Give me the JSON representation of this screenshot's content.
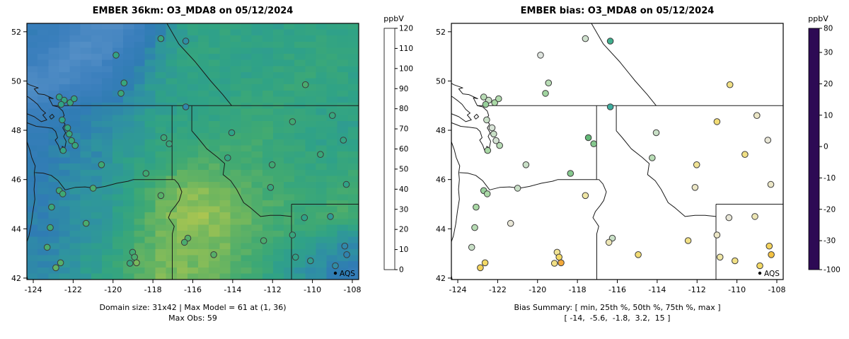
{
  "panels": {
    "model": {
      "title": "EMBER 36km: O3_MDA8 on 05/12/2024",
      "caption1": "Domain size: 31x42 | Max Model = 61 at (1, 36)",
      "caption2": "Max Obs: 59"
    },
    "bias": {
      "title": "EMBER bias: O3_MDA8 on 05/12/2024",
      "caption1": "Bias Summary: [ min, 25th %, 50th %, 75th %, max ]",
      "caption2": "[ -14,  -5.6,  -1.8,  3.2,  15 ]"
    }
  },
  "legend": {
    "aqs": "AQS"
  },
  "chart_data": {
    "type": [
      "heatmap",
      "scatter"
    ],
    "units": "ppbV",
    "lon_range": [
      -124.32,
      -107.68
    ],
    "lat_range": [
      41.94,
      52.34
    ],
    "xticks": [
      -124,
      -122,
      -120,
      -118,
      -116,
      -114,
      -112,
      -110,
      -108
    ],
    "yticks": [
      42,
      44,
      46,
      48,
      50,
      52
    ],
    "domain_size": "31x42",
    "max_model": "61 at (1, 36)",
    "max_obs": 59,
    "bias_summary": {
      "min": -14,
      "p25": -5.6,
      "median": -1.8,
      "p75": 3.2,
      "max": 15
    },
    "model_colorbar": {
      "label": "ppbV",
      "min": 0,
      "max": 120,
      "ticks": [
        0,
        10,
        20,
        30,
        40,
        50,
        60,
        70,
        80,
        90,
        100,
        110,
        120
      ],
      "stops": [
        [
          0,
          "#ffffff"
        ],
        [
          8,
          "#d2d2d2"
        ],
        [
          14,
          "#bcc2c9"
        ],
        [
          18,
          "#a6c3da"
        ],
        [
          24,
          "#7fb0d3"
        ],
        [
          30,
          "#548fc6"
        ],
        [
          36,
          "#3b7fbd"
        ],
        [
          42,
          "#2f7cb3"
        ],
        [
          46,
          "#2f93a0"
        ],
        [
          50,
          "#2fa287"
        ],
        [
          54,
          "#3fa973"
        ],
        [
          58,
          "#6cb55f"
        ],
        [
          62,
          "#a5c452"
        ],
        [
          66,
          "#d0cf46"
        ],
        [
          70,
          "#f2d63c"
        ],
        [
          76,
          "#f2b437"
        ],
        [
          82,
          "#ee9130"
        ],
        [
          90,
          "#e7672a"
        ],
        [
          100,
          "#e03a25"
        ],
        [
          110,
          "#da2430"
        ],
        [
          116,
          "#dd2f5e"
        ],
        [
          120,
          "#e8479b"
        ]
      ]
    },
    "bias_colorbar": {
      "label": "ppbV",
      "anchors": [
        [
          -100,
          0
        ],
        [
          -30,
          0.12
        ],
        [
          -20,
          0.25
        ],
        [
          -10,
          0.38
        ],
        [
          0,
          0.51
        ],
        [
          10,
          0.64
        ],
        [
          20,
          0.77
        ],
        [
          30,
          0.9
        ],
        [
          80,
          1
        ]
      ],
      "stops": [
        [
          -100,
          "#2d0a54"
        ],
        [
          -38,
          "#6a41a8"
        ],
        [
          -28,
          "#4c5fc0"
        ],
        [
          -22,
          "#3f8fc9"
        ],
        [
          -17,
          "#39a8b8"
        ],
        [
          -12,
          "#3fae8d"
        ],
        [
          -8,
          "#62b877"
        ],
        [
          -4,
          "#a9d8a5"
        ],
        [
          0,
          "#e6e6e6"
        ],
        [
          4,
          "#efe6a5"
        ],
        [
          8,
          "#f3d965"
        ],
        [
          12,
          "#f4c243"
        ],
        [
          16,
          "#f2a136"
        ],
        [
          20,
          "#ee7f2e"
        ],
        [
          25,
          "#e25427"
        ],
        [
          30,
          "#cc2d24"
        ],
        [
          45,
          "#a31321"
        ],
        [
          80,
          "#6b0a1c"
        ]
      ]
    },
    "model_grid": {
      "note": "approximate O3_MDA8 field in ppbV, 16 cols x 14 rows, rows north to south",
      "values": [
        [
          39,
          36,
          33,
          31,
          32,
          37,
          44,
          49,
          51,
          51,
          50,
          50,
          50,
          51,
          51,
          51
        ],
        [
          37,
          34,
          31,
          32,
          35,
          41,
          47,
          50,
          51,
          51,
          50,
          50,
          51,
          51,
          52,
          51
        ],
        [
          34,
          31,
          32,
          34,
          38,
          44,
          48,
          50,
          51,
          50,
          50,
          51,
          51,
          52,
          52,
          51
        ],
        [
          32,
          33,
          35,
          38,
          42,
          46,
          49,
          50,
          50,
          50,
          51,
          52,
          52,
          52,
          51,
          50
        ],
        [
          35,
          38,
          40,
          42,
          44,
          47,
          49,
          50,
          50,
          51,
          52,
          52,
          52,
          51,
          50,
          50
        ],
        [
          38,
          41,
          43,
          44,
          46,
          48,
          50,
          51,
          51,
          52,
          53,
          53,
          52,
          51,
          50,
          50
        ],
        [
          40,
          43,
          44,
          45,
          47,
          49,
          51,
          52,
          53,
          53,
          54,
          53,
          52,
          51,
          50,
          51
        ],
        [
          41,
          43,
          44,
          45,
          48,
          50,
          52,
          54,
          55,
          55,
          54,
          53,
          52,
          52,
          51,
          52
        ],
        [
          42,
          44,
          45,
          46,
          48,
          52,
          55,
          57,
          58,
          57,
          56,
          54,
          53,
          52,
          52,
          53
        ],
        [
          42,
          44,
          46,
          47,
          49,
          53,
          57,
          60,
          60,
          59,
          57,
          55,
          54,
          53,
          53,
          54
        ],
        [
          43,
          44,
          46,
          47,
          50,
          54,
          58,
          61,
          61,
          60,
          58,
          56,
          54,
          53,
          54,
          55
        ],
        [
          43,
          44,
          46,
          48,
          51,
          55,
          58,
          60,
          60,
          59,
          57,
          55,
          53,
          52,
          50,
          47
        ],
        [
          43,
          45,
          47,
          49,
          52,
          56,
          58,
          59,
          59,
          58,
          56,
          53,
          51,
          48,
          46,
          44
        ],
        [
          44,
          45,
          47,
          50,
          53,
          57,
          59,
          59,
          58,
          57,
          55,
          52,
          49,
          46,
          44,
          41
        ]
      ]
    },
    "stations": {
      "fields": [
        "lon",
        "lat",
        "obs_ppbv",
        "bias_ppbv"
      ],
      "rows": [
        [
          -117.6,
          51.72,
          52,
          -1.5
        ],
        [
          -116.35,
          51.62,
          45,
          -12
        ],
        [
          -119.85,
          51.05,
          51,
          -0.5
        ],
        [
          -119.45,
          49.92,
          52,
          -3
        ],
        [
          -119.6,
          49.5,
          53,
          -4.5
        ],
        [
          -122.7,
          49.35,
          50,
          -3
        ],
        [
          -122.45,
          49.22,
          51,
          -2
        ],
        [
          -122.15,
          49.12,
          52,
          -4
        ],
        [
          -122.6,
          49.05,
          50,
          -5
        ],
        [
          -121.95,
          49.28,
          51,
          -3.5
        ],
        [
          -116.35,
          48.95,
          44,
          -14
        ],
        [
          -110.35,
          49.85,
          55,
          6
        ],
        [
          -122.55,
          48.42,
          50,
          -2
        ],
        [
          -122.28,
          48.1,
          51,
          -1
        ],
        [
          -122.2,
          47.85,
          52,
          -2
        ],
        [
          -122.08,
          47.58,
          53,
          -1.2
        ],
        [
          -121.9,
          47.38,
          52,
          -3
        ],
        [
          -122.5,
          47.18,
          51,
          -4
        ],
        [
          -120.58,
          46.6,
          54,
          -2
        ],
        [
          -117.45,
          47.7,
          53,
          -8
        ],
        [
          -117.18,
          47.45,
          52,
          -6
        ],
        [
          -114.05,
          47.9,
          50,
          -2
        ],
        [
          -111.0,
          48.35,
          54,
          7
        ],
        [
          -109.0,
          48.6,
          52,
          2
        ],
        [
          -114.25,
          46.88,
          51,
          -3
        ],
        [
          -112.02,
          46.6,
          54,
          5
        ],
        [
          -109.6,
          47.02,
          53,
          6
        ],
        [
          -108.45,
          47.6,
          51,
          1
        ],
        [
          -108.3,
          45.8,
          50,
          2
        ],
        [
          -118.35,
          46.25,
          54,
          -6
        ],
        [
          -122.7,
          45.55,
          53,
          -5
        ],
        [
          -122.52,
          45.42,
          54,
          -4
        ],
        [
          -121.0,
          45.65,
          55,
          -2
        ],
        [
          -117.6,
          45.35,
          56,
          4
        ],
        [
          -123.08,
          44.88,
          53,
          -4
        ],
        [
          -123.15,
          44.05,
          54,
          -3
        ],
        [
          -121.35,
          44.22,
          55,
          1
        ],
        [
          -116.25,
          43.62,
          56,
          -2
        ],
        [
          -116.42,
          43.45,
          55,
          3
        ],
        [
          -112.45,
          43.52,
          55,
          6
        ],
        [
          -111.0,
          43.75,
          52,
          2
        ],
        [
          -110.4,
          44.45,
          50,
          1
        ],
        [
          -109.1,
          44.5,
          48,
          3
        ],
        [
          -112.1,
          45.68,
          52,
          2
        ],
        [
          -114.95,
          42.95,
          56,
          7
        ],
        [
          -123.3,
          43.25,
          55,
          -2
        ],
        [
          -122.87,
          42.42,
          57,
          9
        ],
        [
          -122.63,
          42.62,
          56,
          8
        ],
        [
          -119.02,
          43.05,
          54,
          5
        ],
        [
          -118.92,
          42.85,
          55,
          8
        ],
        [
          -118.82,
          42.62,
          59,
          15
        ],
        [
          -119.15,
          42.6,
          52,
          6
        ],
        [
          -110.85,
          42.85,
          50,
          4
        ],
        [
          -110.1,
          42.7,
          49,
          6
        ],
        [
          -108.38,
          43.3,
          44,
          9
        ],
        [
          -108.28,
          42.95,
          43,
          12
        ],
        [
          -108.85,
          42.5,
          45,
          8
        ]
      ]
    }
  },
  "geo": {
    "polylines": {
      "pacific_coast": [
        [
          -124.72,
          48.38
        ],
        [
          -124.52,
          48.0
        ],
        [
          -124.35,
          47.6
        ],
        [
          -124.17,
          47.2
        ],
        [
          -124.08,
          46.9
        ],
        [
          -123.9,
          46.55
        ],
        [
          -123.95,
          46.28
        ],
        [
          -123.92,
          46.0
        ],
        [
          -123.96,
          45.6
        ],
        [
          -123.92,
          45.2
        ],
        [
          -124.02,
          44.7
        ],
        [
          -124.1,
          44.2
        ],
        [
          -124.22,
          43.7
        ],
        [
          -124.4,
          43.3
        ],
        [
          -124.56,
          42.88
        ],
        [
          -124.42,
          42.5
        ],
        [
          -124.28,
          41.94
        ]
      ],
      "salish_coast": [
        [
          -124.72,
          48.38
        ],
        [
          -124.3,
          48.3
        ],
        [
          -123.85,
          48.16
        ],
        [
          -123.4,
          48.12
        ],
        [
          -123.05,
          48.08
        ],
        [
          -122.88,
          47.95
        ],
        [
          -122.78,
          47.7
        ],
        [
          -122.9,
          47.6
        ],
        [
          -122.75,
          47.4
        ],
        [
          -122.62,
          47.1
        ],
        [
          -122.5,
          47.08
        ],
        [
          -122.55,
          47.35
        ],
        [
          -122.42,
          47.28
        ],
        [
          -122.35,
          47.55
        ],
        [
          -122.48,
          47.75
        ],
        [
          -122.38,
          47.9
        ],
        [
          -122.52,
          48.1
        ],
        [
          -122.4,
          48.25
        ],
        [
          -122.6,
          48.42
        ],
        [
          -122.45,
          48.6
        ],
        [
          -122.52,
          48.78
        ],
        [
          -122.75,
          48.95
        ],
        [
          -123.02,
          49.0
        ],
        [
          -123.22,
          49.32
        ],
        [
          -123.0,
          49.28
        ],
        [
          -123.45,
          49.45
        ],
        [
          -123.75,
          49.48
        ],
        [
          -123.95,
          49.68
        ],
        [
          -123.75,
          49.72
        ],
        [
          -124.2,
          49.85
        ],
        [
          -124.55,
          50.02
        ],
        [
          -124.78,
          50.3
        ]
      ],
      "vancouver_island": [
        [
          -124.78,
          48.95
        ],
        [
          -124.35,
          48.68
        ],
        [
          -123.95,
          48.55
        ],
        [
          -123.6,
          48.35
        ],
        [
          -123.32,
          48.42
        ],
        [
          -123.52,
          48.62
        ],
        [
          -123.38,
          48.7
        ],
        [
          -123.6,
          48.85
        ],
        [
          -123.78,
          49.05
        ],
        [
          -124.0,
          49.2
        ],
        [
          -124.25,
          49.35
        ],
        [
          -124.6,
          49.5
        ],
        [
          -124.78,
          49.62
        ]
      ],
      "san_juan_islands": [
        [
          -123.1,
          48.45
        ],
        [
          -122.95,
          48.55
        ],
        [
          -123.05,
          48.65
        ],
        [
          -123.18,
          48.55
        ],
        [
          -123.1,
          48.45
        ]
      ],
      "us_canada_border": [
        [
          -123.02,
          49.0
        ],
        [
          -107.68,
          49.0
        ]
      ],
      "bc_ab_border": [
        [
          -117.3,
          52.34
        ],
        [
          -116.7,
          51.5
        ],
        [
          -115.9,
          50.8
        ],
        [
          -115.1,
          50.0
        ],
        [
          -114.5,
          49.45
        ],
        [
          -114.05,
          49.0
        ]
      ],
      "wa_id_border": [
        [
          -117.04,
          49.0
        ],
        [
          -117.04,
          46.0
        ]
      ],
      "wa_or_border": [
        [
          -123.92,
          46.28
        ],
        [
          -123.5,
          46.26
        ],
        [
          -123.1,
          46.17
        ],
        [
          -122.75,
          45.95
        ],
        [
          -122.4,
          45.58
        ],
        [
          -121.9,
          45.68
        ],
        [
          -121.4,
          45.7
        ],
        [
          -120.9,
          45.65
        ],
        [
          -120.4,
          45.72
        ],
        [
          -119.8,
          45.85
        ],
        [
          -119.25,
          45.93
        ],
        [
          -118.98,
          46.0
        ],
        [
          -116.92,
          46.0
        ]
      ],
      "or_id_border": [
        [
          -116.92,
          46.0
        ],
        [
          -116.72,
          45.82
        ],
        [
          -116.55,
          45.5
        ],
        [
          -116.68,
          45.15
        ],
        [
          -116.85,
          44.95
        ],
        [
          -117.1,
          44.7
        ],
        [
          -117.22,
          44.45
        ],
        [
          -117.05,
          44.25
        ],
        [
          -116.93,
          44.1
        ],
        [
          -117.03,
          43.8
        ],
        [
          -117.03,
          41.94
        ]
      ],
      "id_mt_border": [
        [
          -116.05,
          49.0
        ],
        [
          -116.05,
          47.98
        ],
        [
          -115.75,
          47.7
        ],
        [
          -115.3,
          47.25
        ],
        [
          -114.75,
          46.9
        ],
        [
          -114.4,
          46.65
        ],
        [
          -114.48,
          46.2
        ],
        [
          -114.1,
          45.95
        ],
        [
          -113.8,
          45.6
        ],
        [
          -113.45,
          45.06
        ],
        [
          -113.1,
          44.85
        ],
        [
          -112.6,
          44.5
        ],
        [
          -112.1,
          44.55
        ],
        [
          -111.6,
          44.55
        ],
        [
          -111.05,
          44.5
        ]
      ],
      "id_wy_border": [
        [
          -111.05,
          45.0
        ],
        [
          -111.05,
          41.94
        ]
      ],
      "mt_wy_border": [
        [
          -111.05,
          45.0
        ],
        [
          -107.68,
          45.0
        ]
      ]
    }
  }
}
